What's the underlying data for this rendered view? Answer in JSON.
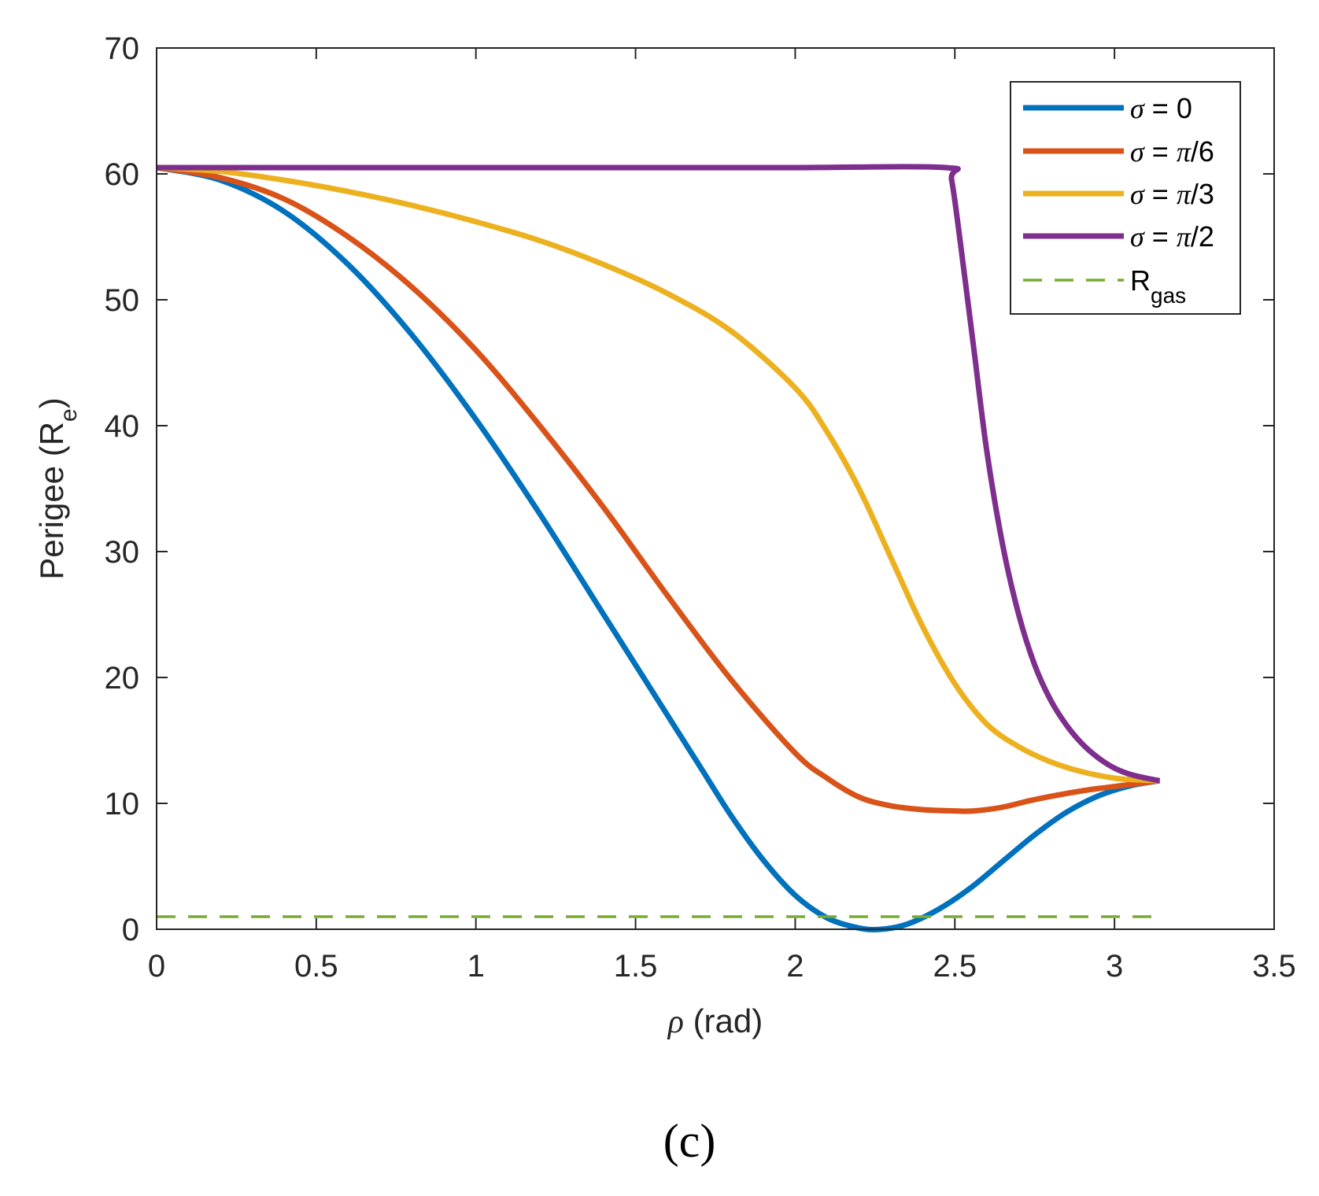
{
  "panel_label": "(c)",
  "chart_data": {
    "type": "line",
    "xlabel": "ρ (rad)",
    "ylabel": "Perigee (R_e)",
    "xlim": [
      0,
      3.5
    ],
    "ylim": [
      0,
      70
    ],
    "xticks": [
      0,
      0.5,
      1,
      1.5,
      2,
      2.5,
      3,
      3.5
    ],
    "xtick_labels": [
      "0",
      "0.5",
      "1",
      "1.5",
      "2",
      "2.5",
      "3",
      "3.5"
    ],
    "yticks": [
      0,
      10,
      20,
      30,
      40,
      50,
      60,
      70
    ],
    "ytick_labels": [
      "0",
      "10",
      "20",
      "30",
      "40",
      "50",
      "60",
      "70"
    ],
    "grid": false,
    "legend_position": "top-right",
    "series": [
      {
        "name": "σ = 0",
        "color": "#0072BD",
        "style": "solid",
        "x": [
          0,
          0.2,
          0.4,
          0.6,
          0.8,
          1.0,
          1.2,
          1.4,
          1.5,
          1.6,
          1.7,
          1.8,
          1.9,
          2.0,
          2.1,
          2.2,
          2.27,
          2.35,
          2.45,
          2.55,
          2.65,
          2.75,
          2.85,
          2.95,
          3.05,
          3.1416
        ],
        "y": [
          60.5,
          59.5,
          57.0,
          52.8,
          47.2,
          40.5,
          33.0,
          25.0,
          21.0,
          17.0,
          13.0,
          9.0,
          5.5,
          2.7,
          0.9,
          0.1,
          0.0,
          0.4,
          1.6,
          3.3,
          5.4,
          7.5,
          9.3,
          10.6,
          11.4,
          11.8
        ]
      },
      {
        "name": "σ = π/6",
        "color": "#D95319",
        "style": "solid",
        "x": [
          0,
          0.2,
          0.4,
          0.6,
          0.8,
          1.0,
          1.2,
          1.4,
          1.6,
          1.8,
          2.0,
          2.1,
          2.2,
          2.3,
          2.4,
          2.5,
          2.56,
          2.65,
          2.75,
          2.9,
          3.05,
          3.1416
        ],
        "y": [
          60.5,
          59.7,
          58.0,
          55.0,
          51.0,
          46.0,
          40.0,
          33.5,
          26.5,
          19.8,
          14.0,
          12.0,
          10.5,
          9.8,
          9.5,
          9.4,
          9.4,
          9.7,
          10.3,
          11.0,
          11.5,
          11.8
        ]
      },
      {
        "name": "σ = π/3",
        "color": "#EDB120",
        "style": "solid",
        "x": [
          0,
          0.2,
          0.4,
          0.6,
          0.8,
          1.0,
          1.2,
          1.4,
          1.6,
          1.8,
          2.0,
          2.1,
          2.2,
          2.3,
          2.4,
          2.5,
          2.6,
          2.7,
          2.8,
          2.9,
          3.0,
          3.05,
          3.1416
        ],
        "y": [
          60.5,
          60.2,
          59.5,
          58.6,
          57.5,
          56.2,
          54.7,
          52.8,
          50.5,
          47.5,
          43.0,
          39.5,
          35.0,
          29.5,
          24.0,
          19.5,
          16.3,
          14.5,
          13.3,
          12.5,
          12.0,
          11.9,
          11.8
        ]
      },
      {
        "name": "σ = π/2",
        "color": "#7E2F8E",
        "style": "solid",
        "x": [
          0,
          0.5,
          1.0,
          1.5,
          2.0,
          2.47,
          2.49,
          2.52,
          2.56,
          2.6,
          2.65,
          2.7,
          2.75,
          2.8,
          2.85,
          2.9,
          2.95,
          3.0,
          3.05,
          3.1,
          3.1416
        ],
        "y": [
          60.5,
          60.5,
          60.5,
          60.5,
          60.5,
          60.5,
          59.5,
          54.0,
          46.0,
          38.0,
          30.5,
          25.0,
          21.0,
          18.2,
          16.2,
          14.7,
          13.6,
          12.8,
          12.3,
          12.0,
          11.8
        ]
      },
      {
        "name": "R_gas",
        "color": "#77AC30",
        "style": "dashed",
        "x": [
          0,
          3.1416
        ],
        "y": [
          1.0,
          1.0
        ]
      }
    ]
  }
}
